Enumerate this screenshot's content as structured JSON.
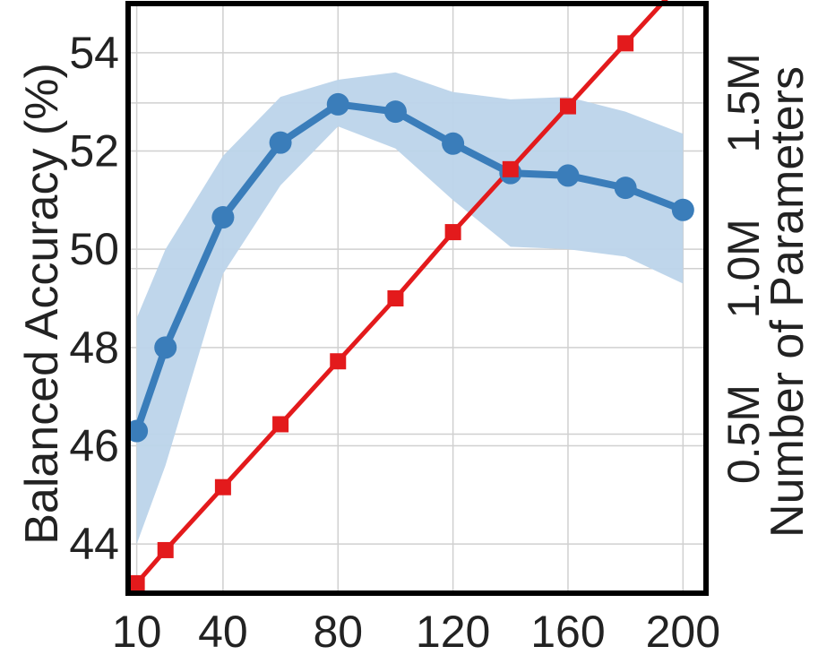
{
  "chart_data": {
    "type": "line",
    "x": [
      10,
      20,
      40,
      60,
      80,
      100,
      120,
      140,
      160,
      180,
      200
    ],
    "x_ticks": [
      10,
      40,
      80,
      120,
      160,
      200
    ],
    "x_tick_labels": [
      "10",
      "40",
      "80",
      "120",
      "160",
      "200"
    ],
    "xlim": [
      7,
      208
    ],
    "ylabel_left": "Balanced Accuracy (%)",
    "ylim_left": [
      43.0,
      55.0
    ],
    "y_ticks_left": [
      44,
      46,
      48,
      50,
      52,
      54
    ],
    "y_tick_labels_left": [
      "44",
      "46",
      "48",
      "50",
      "52",
      "54"
    ],
    "ylabel_right": "Number of Parameters",
    "ylim_right": [
      0.02,
      1.8
    ],
    "y_ticks_right": [
      0.5,
      1.0,
      1.5
    ],
    "y_tick_labels_right": [
      "0.5M",
      "1.0M",
      "1.5M"
    ],
    "grid": true,
    "series": [
      {
        "axis": "left",
        "color": "#3a7dba",
        "band_color": "#bcd4ea",
        "marker": "circle",
        "values": [
          46.3,
          48.0,
          50.65,
          52.17,
          52.95,
          52.8,
          52.15,
          51.55,
          51.5,
          51.25,
          50.8
        ],
        "lower": [
          44.0,
          45.6,
          49.5,
          51.3,
          52.5,
          52.05,
          51.0,
          50.05,
          50.0,
          49.85,
          49.3
        ],
        "upper": [
          48.6,
          50.0,
          51.9,
          53.1,
          53.45,
          53.6,
          53.2,
          53.05,
          53.1,
          52.8,
          52.35
        ]
      },
      {
        "axis": "right",
        "color": "#e31a1c",
        "marker": "square",
        "values": [
          0.05,
          0.15,
          0.34,
          0.53,
          0.72,
          0.91,
          1.11,
          1.3,
          1.49,
          1.68,
          1.87
        ]
      }
    ]
  }
}
